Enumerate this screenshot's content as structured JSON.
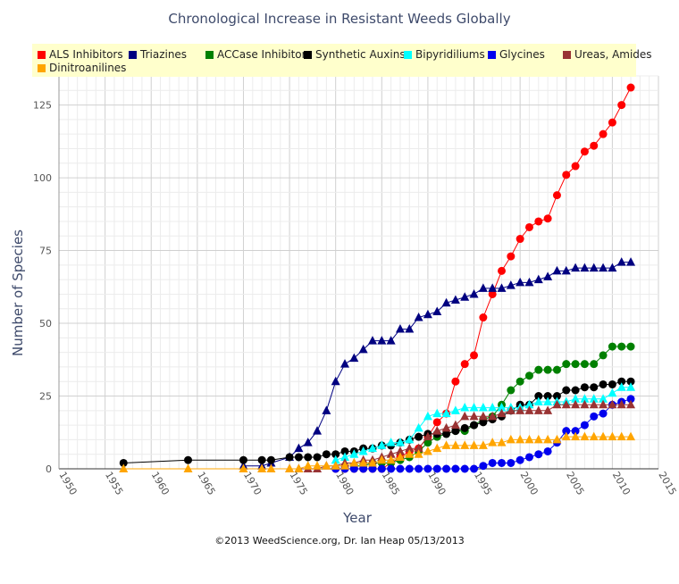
{
  "chart_data": {
    "type": "line",
    "title": "Chronological Increase in Resistant Weeds Globally",
    "xlabel": "Year",
    "ylabel": "Number of Species",
    "xlim": [
      1950,
      2015
    ],
    "ylim": [
      0,
      135
    ],
    "x_ticks": [
      1950,
      1955,
      1960,
      1965,
      1970,
      1975,
      1980,
      1985,
      1990,
      1995,
      2000,
      2005,
      2010,
      2015
    ],
    "y_ticks": [
      0,
      25,
      50,
      75,
      100,
      125
    ],
    "grid": true,
    "legend_position": "top",
    "series": [
      {
        "name": "ALS Inhibitors",
        "color": "#ff0000",
        "marker": "circle",
        "x": [
          1980,
          1981,
          1982,
          1983,
          1984,
          1985,
          1986,
          1987,
          1988,
          1989,
          1990,
          1991,
          1992,
          1993,
          1994,
          1995,
          1996,
          1997,
          1998,
          1999,
          2000,
          2001,
          2002,
          2003,
          2004,
          2005,
          2006,
          2007,
          2008,
          2009,
          2010,
          2011,
          2012
        ],
        "y": [
          0,
          0,
          0,
          0,
          0,
          0,
          2,
          4,
          6,
          7,
          11,
          16,
          19,
          30,
          36,
          39,
          52,
          60,
          68,
          73,
          79,
          83,
          85,
          86,
          94,
          101,
          104,
          109,
          111,
          115,
          119,
          125,
          131
        ]
      },
      {
        "name": "Triazines",
        "color": "#000080",
        "marker": "triangle",
        "x": [
          1970,
          1972,
          1973,
          1975,
          1976,
          1977,
          1978,
          1979,
          1980,
          1981,
          1982,
          1983,
          1984,
          1985,
          1986,
          1987,
          1988,
          1989,
          1990,
          1991,
          1992,
          1993,
          1994,
          1995,
          1996,
          1997,
          1998,
          1999,
          2000,
          2001,
          2002,
          2003,
          2004,
          2005,
          2006,
          2007,
          2008,
          2009,
          2010,
          2011,
          2012
        ],
        "y": [
          1,
          1,
          2,
          4,
          7,
          9,
          13,
          20,
          30,
          36,
          38,
          41,
          44,
          44,
          44,
          48,
          48,
          52,
          53,
          54,
          57,
          58,
          59,
          60,
          62,
          62,
          62,
          63,
          64,
          64,
          65,
          66,
          68,
          68,
          69,
          69,
          69,
          69,
          69,
          71,
          71
        ]
      },
      {
        "name": "ACCase Inhibitors",
        "color": "#008000",
        "marker": "circle",
        "x": [
          1982,
          1983,
          1984,
          1985,
          1986,
          1987,
          1988,
          1989,
          1990,
          1991,
          1992,
          1993,
          1994,
          1995,
          1996,
          1997,
          1998,
          1999,
          2000,
          2001,
          2002,
          2003,
          2004,
          2005,
          2006,
          2007,
          2008,
          2009,
          2010,
          2011,
          2012
        ],
        "y": [
          1,
          1,
          2,
          2,
          2,
          3,
          4,
          6,
          9,
          11,
          12,
          13,
          13,
          15,
          17,
          18,
          22,
          27,
          30,
          32,
          34,
          34,
          34,
          36,
          36,
          36,
          36,
          39,
          42,
          42,
          42
        ]
      },
      {
        "name": "Synthetic Auxins",
        "color": "#000000",
        "marker": "circle",
        "x": [
          1957,
          1964,
          1970,
          1972,
          1973,
          1975,
          1976,
          1977,
          1978,
          1979,
          1980,
          1981,
          1982,
          1983,
          1984,
          1985,
          1986,
          1987,
          1988,
          1989,
          1990,
          1991,
          1992,
          1993,
          1994,
          1995,
          1996,
          1997,
          1998,
          1999,
          2000,
          2001,
          2002,
          2003,
          2004,
          2005,
          2006,
          2007,
          2008,
          2009,
          2010,
          2011,
          2012
        ],
        "y": [
          2,
          3,
          3,
          3,
          3,
          4,
          4,
          4,
          4,
          5,
          5,
          6,
          6,
          7,
          7,
          8,
          8,
          9,
          10,
          11,
          12,
          12,
          12,
          13,
          14,
          15,
          16,
          17,
          18,
          20,
          22,
          22,
          25,
          25,
          25,
          27,
          27,
          28,
          28,
          29,
          29,
          30,
          30
        ]
      },
      {
        "name": "Bipyridiliums",
        "color": "#00ffff",
        "marker": "triangle",
        "x": [
          1980,
          1981,
          1982,
          1983,
          1984,
          1985,
          1986,
          1987,
          1988,
          1989,
          1990,
          1991,
          1992,
          1993,
          1994,
          1995,
          1996,
          1997,
          1998,
          1999,
          2000,
          2001,
          2002,
          2003,
          2004,
          2005,
          2006,
          2007,
          2008,
          2009,
          2010,
          2011,
          2012
        ],
        "y": [
          3,
          4,
          5,
          6,
          7,
          8,
          9,
          9,
          10,
          14,
          18,
          19,
          19,
          20,
          21,
          21,
          21,
          21,
          21,
          21,
          21,
          22,
          23,
          23,
          23,
          23,
          24,
          24,
          24,
          24,
          26,
          28,
          28
        ]
      },
      {
        "name": "Glycines",
        "color": "#0000ee",
        "marker": "circle",
        "x": [
          1980,
          1981,
          1982,
          1983,
          1984,
          1985,
          1986,
          1987,
          1988,
          1989,
          1990,
          1991,
          1992,
          1993,
          1994,
          1995,
          1996,
          1997,
          1998,
          1999,
          2000,
          2001,
          2002,
          2003,
          2004,
          2005,
          2006,
          2007,
          2008,
          2009,
          2010,
          2011,
          2012
        ],
        "y": [
          0,
          0,
          0,
          0,
          0,
          0,
          0,
          0,
          0,
          0,
          0,
          0,
          0,
          0,
          0,
          0,
          1,
          2,
          2,
          2,
          3,
          4,
          5,
          6,
          9,
          13,
          13,
          15,
          18,
          19,
          22,
          23,
          24
        ]
      },
      {
        "name": "Ureas, Amides",
        "color": "#993333",
        "marker": "triangle",
        "x": [
          1975,
          1976,
          1977,
          1978,
          1979,
          1980,
          1981,
          1982,
          1983,
          1984,
          1985,
          1986,
          1987,
          1988,
          1989,
          1990,
          1991,
          1992,
          1993,
          1994,
          1995,
          1996,
          1997,
          1998,
          1999,
          2000,
          2001,
          2002,
          2003,
          2004,
          2005,
          2006,
          2007,
          2008,
          2009,
          2010,
          2011,
          2012
        ],
        "y": [
          0,
          0,
          0,
          0,
          1,
          1,
          2,
          2,
          3,
          3,
          4,
          5,
          6,
          7,
          7,
          11,
          13,
          14,
          15,
          18,
          18,
          18,
          18,
          19,
          20,
          20,
          20,
          20,
          20,
          22,
          22,
          22,
          22,
          22,
          22,
          22,
          22,
          22
        ]
      },
      {
        "name": "Dinitroanilines",
        "color": "#ffa500",
        "marker": "triangle",
        "x": [
          1957,
          1964,
          1970,
          1972,
          1973,
          1975,
          1976,
          1977,
          1978,
          1979,
          1980,
          1981,
          1982,
          1983,
          1984,
          1985,
          1986,
          1987,
          1988,
          1989,
          1990,
          1991,
          1992,
          1993,
          1994,
          1995,
          1996,
          1997,
          1998,
          1999,
          2000,
          2001,
          2002,
          2003,
          2004,
          2005,
          2006,
          2007,
          2008,
          2009,
          2010,
          2011,
          2012
        ],
        "y": [
          0,
          0,
          0,
          0,
          0,
          0,
          0,
          1,
          1,
          1,
          1,
          1,
          2,
          2,
          2,
          3,
          3,
          4,
          5,
          5,
          6,
          7,
          8,
          8,
          8,
          8,
          8,
          9,
          9,
          10,
          10,
          10,
          10,
          10,
          10,
          11,
          11,
          11,
          11,
          11,
          11,
          11,
          11
        ]
      }
    ]
  },
  "credit": "©2013 WeedScience.org, Dr. Ian Heap 05/13/2013"
}
